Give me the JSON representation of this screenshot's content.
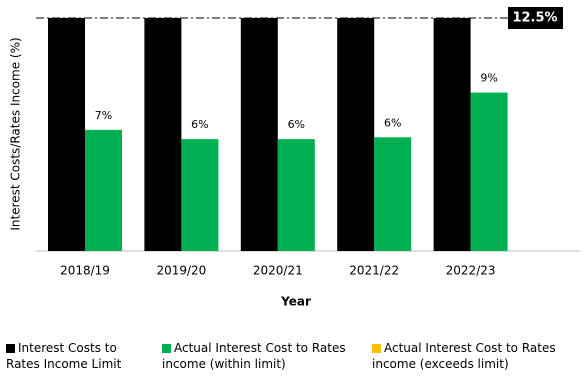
{
  "chart_data": {
    "type": "bar",
    "y_label": "Interest Costs/Rates Income (%)",
    "x_label": "Year",
    "categories": [
      "2018/19",
      "2019/20",
      "2020/21",
      "2021/22",
      "2022/23"
    ],
    "series": [
      {
        "name": "Interest Costs to Rates Income Limit",
        "color": "#000000",
        "values": [
          12.5,
          12.5,
          12.5,
          12.5,
          12.5
        ]
      },
      {
        "name": "Actual Interest Cost to Rates income (within limit)",
        "color": "#00b050",
        "values": [
          6.5,
          6.0,
          6.0,
          6.1,
          8.5
        ],
        "value_labels": [
          "7%",
          "6%",
          "6%",
          "6%",
          "9%"
        ]
      },
      {
        "name": "Actual Interest Cost to Rates income (exceeds limit)",
        "color": "#ffc000",
        "values": [
          null,
          null,
          null,
          null,
          null
        ]
      }
    ],
    "limit": {
      "value": 12.5,
      "label": "12.5%"
    },
    "ylim": [
      0,
      12.5
    ]
  }
}
